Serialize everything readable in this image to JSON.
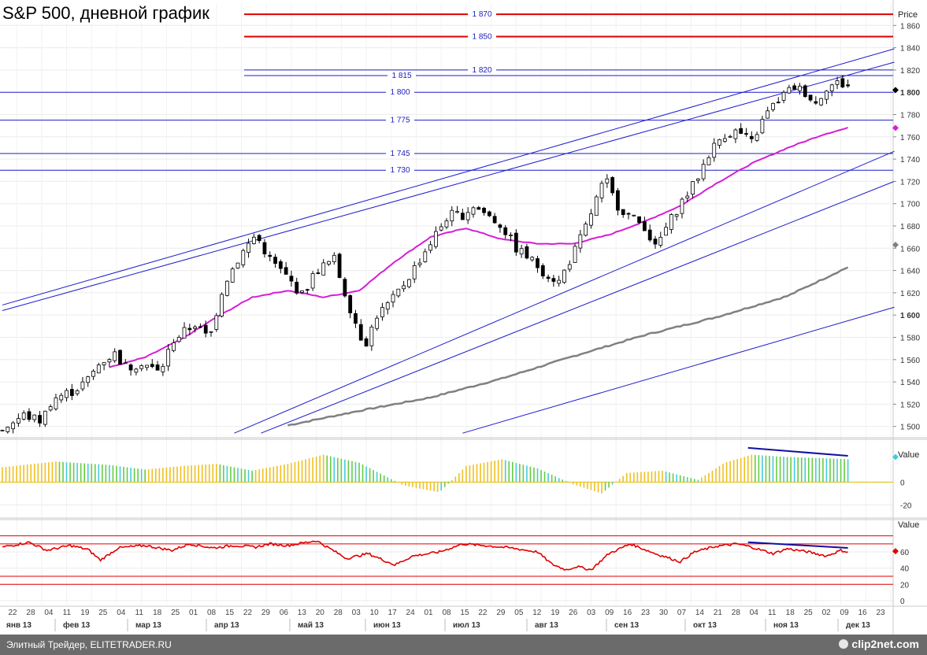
{
  "title": "S&P 500, дневной график",
  "footer": {
    "text": "Элитный Трейдер, ELITETRADER.RU",
    "logo": "clip2net.com"
  },
  "colors": {
    "bull": "#ffffff",
    "bear": "#000000",
    "ma_short": "#d61ed6",
    "ma_long": "#808080",
    "levels": "#1c1ccc",
    "levels_red": "#dd0000",
    "rsi": "#e00000",
    "hist_green": "#66cc44",
    "hist_cyan": "#44ccdd",
    "hist_yellow": "#f0c020"
  },
  "chart_data": [
    {
      "type": "candlestick",
      "title": "S&P 500, дневной график",
      "ylabel": "Price",
      "ylim": [
        1492,
        1880
      ],
      "y_ticks": [
        1500,
        1520,
        1540,
        1560,
        1580,
        1600,
        1620,
        1640,
        1660,
        1680,
        1700,
        1720,
        1740,
        1760,
        1780,
        1800,
        1820,
        1840,
        1860
      ],
      "y_tick_labels": [
        "1 500",
        "1 520",
        "1 540",
        "1 560",
        "1 580",
        "1 600",
        "1 620",
        "1 640",
        "1 660",
        "1 680",
        "1 700",
        "1 720",
        "1 740",
        "1 760",
        "1 780",
        "1 800",
        "1 820",
        "1 840",
        "1 860"
      ],
      "x_day_labels": [
        "22",
        "28",
        "04",
        "11",
        "19",
        "25",
        "04",
        "11",
        "18",
        "25",
        "01",
        "08",
        "15",
        "22",
        "29",
        "06",
        "13",
        "20",
        "28",
        "03",
        "10",
        "17",
        "24",
        "01",
        "08",
        "15",
        "22",
        "29",
        "05",
        "12",
        "19",
        "26",
        "03",
        "09",
        "16",
        "23",
        "30",
        "07",
        "14",
        "21",
        "28",
        "04",
        "11",
        "18",
        "25",
        "02",
        "09",
        "16",
        "23"
      ],
      "x_month_labels": [
        "янв 13",
        "фев 13",
        "мар 13",
        "апр 13",
        "май 13",
        "июн 13",
        "июл 13",
        "авг 13",
        "сен 13",
        "окт 13",
        "ноя 13",
        "дек 13"
      ],
      "horizontal_levels": [
        {
          "value": 1870,
          "label": "1 870",
          "color": "red"
        },
        {
          "value": 1850,
          "label": "1 850",
          "color": "red"
        },
        {
          "value": 1820,
          "label": "1 820",
          "color": "blue"
        },
        {
          "value": 1815,
          "label": "1 815",
          "color": "blue"
        },
        {
          "value": 1800,
          "label": "1 800",
          "color": "blue"
        },
        {
          "value": 1775,
          "label": "1 775",
          "color": "blue"
        },
        {
          "value": 1745,
          "label": "1 745",
          "color": "blue"
        },
        {
          "value": 1730,
          "label": "1 730",
          "color": "blue"
        }
      ],
      "price_path": [
        [
          0,
          1498
        ],
        [
          12,
          1510
        ],
        [
          22,
          1505
        ],
        [
          28,
          1525
        ],
        [
          40,
          1532
        ],
        [
          48,
          1542
        ],
        [
          55,
          1558
        ],
        [
          63,
          1565
        ],
        [
          70,
          1552
        ],
        [
          78,
          1558
        ],
        [
          88,
          1548
        ],
        [
          96,
          1578
        ],
        [
          108,
          1592
        ],
        [
          116,
          1578
        ],
        [
          124,
          1628
        ],
        [
          134,
          1655
        ],
        [
          142,
          1672
        ],
        [
          150,
          1650
        ],
        [
          160,
          1633
        ],
        [
          168,
          1618
        ],
        [
          176,
          1640
        ],
        [
          186,
          1650
        ],
        [
          193,
          1615
        ],
        [
          203,
          1572
        ],
        [
          210,
          1600
        ],
        [
          218,
          1612
        ],
        [
          226,
          1630
        ],
        [
          234,
          1650
        ],
        [
          242,
          1670
        ],
        [
          250,
          1690
        ],
        [
          258,
          1690
        ],
        [
          264,
          1698
        ],
        [
          272,
          1690
        ],
        [
          280,
          1680
        ],
        [
          288,
          1660
        ],
        [
          296,
          1650
        ],
        [
          304,
          1638
        ],
        [
          312,
          1630
        ],
        [
          320,
          1655
        ],
        [
          326,
          1675
        ],
        [
          334,
          1708
        ],
        [
          338,
          1722
        ],
        [
          344,
          1700
        ],
        [
          352,
          1688
        ],
        [
          360,
          1680
        ],
        [
          366,
          1660
        ],
        [
          372,
          1678
        ],
        [
          380,
          1700
        ],
        [
          388,
          1718
        ],
        [
          396,
          1745
        ],
        [
          404,
          1762
        ],
        [
          412,
          1765
        ],
        [
          420,
          1755
        ],
        [
          428,
          1780
        ],
        [
          436,
          1795
        ],
        [
          444,
          1805
        ],
        [
          450,
          1800
        ],
        [
          456,
          1790
        ],
        [
          462,
          1805
        ],
        [
          468,
          1808
        ],
        [
          474,
          1806
        ]
      ],
      "ma50": [
        [
          60,
          1553
        ],
        [
          80,
          1562
        ],
        [
          100,
          1578
        ],
        [
          120,
          1598
        ],
        [
          140,
          1616
        ],
        [
          160,
          1622
        ],
        [
          180,
          1616
        ],
        [
          200,
          1622
        ],
        [
          220,
          1648
        ],
        [
          240,
          1670
        ],
        [
          260,
          1678
        ],
        [
          280,
          1668
        ],
        [
          300,
          1664
        ],
        [
          320,
          1664
        ],
        [
          340,
          1672
        ],
        [
          360,
          1684
        ],
        [
          380,
          1698
        ],
        [
          400,
          1718
        ],
        [
          420,
          1736
        ],
        [
          440,
          1750
        ],
        [
          460,
          1762
        ],
        [
          474,
          1768
        ]
      ],
      "ma200": [
        [
          160,
          1501
        ],
        [
          200,
          1514
        ],
        [
          240,
          1526
        ],
        [
          280,
          1543
        ],
        [
          320,
          1563
        ],
        [
          360,
          1582
        ],
        [
          400,
          1598
        ],
        [
          440,
          1617
        ],
        [
          474,
          1643
        ]
      ],
      "trend_lines": [
        {
          "from": [
            0,
            1609
          ],
          "to": [
            500,
            1839
          ]
        },
        {
          "from": [
            0,
            1604
          ],
          "to": [
            500,
            1827
          ]
        },
        {
          "from": [
            130,
            1494
          ],
          "to": [
            500,
            1747
          ]
        },
        {
          "from": [
            145,
            1494
          ],
          "to": [
            500,
            1720
          ]
        },
        {
          "from": [
            258,
            1494
          ],
          "to": [
            500,
            1607
          ]
        }
      ],
      "markers": [
        {
          "value": 1802,
          "label": "1 800",
          "color": "#000000"
        },
        {
          "value": 1768,
          "color": "#d61ed6"
        },
        {
          "value": 1663,
          "color": "#808080"
        }
      ]
    },
    {
      "type": "bar",
      "name": "oscillator",
      "ylabel": "Value",
      "ylim": [
        -26,
        32
      ],
      "y_ticks": [
        0,
        -20
      ],
      "y_tick_labels": [
        "0",
        "-20"
      ],
      "hist_path": [
        [
          0,
          13
        ],
        [
          30,
          18
        ],
        [
          60,
          15
        ],
        [
          80,
          11
        ],
        [
          100,
          14
        ],
        [
          120,
          16
        ],
        [
          140,
          10
        ],
        [
          160,
          16
        ],
        [
          180,
          24
        ],
        [
          200,
          17
        ],
        [
          225,
          -3
        ],
        [
          245,
          -9
        ],
        [
          260,
          14
        ],
        [
          280,
          20
        ],
        [
          300,
          12
        ],
        [
          320,
          -2
        ],
        [
          336,
          -10
        ],
        [
          350,
          8
        ],
        [
          370,
          10
        ],
        [
          390,
          2
        ],
        [
          405,
          17
        ],
        [
          420,
          24
        ],
        [
          440,
          22
        ],
        [
          460,
          21
        ],
        [
          474,
          20
        ]
      ],
      "div_line": {
        "from": [
          418,
          30
        ],
        "to": [
          474,
          23
        ]
      }
    },
    {
      "type": "line",
      "name": "rsi",
      "ylabel": "Value",
      "ylim": [
        -5,
        100
      ],
      "y_ticks": [
        60,
        40,
        20,
        0
      ],
      "y_tick_labels": [
        "60",
        "40",
        "20",
        "0"
      ],
      "levels": [
        80,
        70,
        30,
        20
      ],
      "rsi_path": [
        [
          0,
          66
        ],
        [
          15,
          72
        ],
        [
          25,
          62
        ],
        [
          38,
          68
        ],
        [
          48,
          63
        ],
        [
          55,
          50
        ],
        [
          65,
          65
        ],
        [
          80,
          68
        ],
        [
          95,
          62
        ],
        [
          105,
          70
        ],
        [
          118,
          65
        ],
        [
          130,
          68
        ],
        [
          142,
          66
        ],
        [
          150,
          70
        ],
        [
          160,
          68
        ],
        [
          176,
          74
        ],
        [
          193,
          52
        ],
        [
          205,
          58
        ],
        [
          220,
          44
        ],
        [
          230,
          55
        ],
        [
          245,
          60
        ],
        [
          258,
          70
        ],
        [
          270,
          68
        ],
        [
          285,
          65
        ],
        [
          300,
          60
        ],
        [
          308,
          45
        ],
        [
          316,
          38
        ],
        [
          322,
          42
        ],
        [
          330,
          38
        ],
        [
          340,
          58
        ],
        [
          352,
          70
        ],
        [
          366,
          58
        ],
        [
          380,
          48
        ],
        [
          388,
          60
        ],
        [
          400,
          67
        ],
        [
          412,
          70
        ],
        [
          420,
          66
        ],
        [
          432,
          58
        ],
        [
          440,
          64
        ],
        [
          452,
          60
        ],
        [
          462,
          55
        ],
        [
          470,
          62
        ],
        [
          474,
          60
        ]
      ],
      "div_line": {
        "from": [
          418,
          72
        ],
        "to": [
          474,
          65
        ]
      },
      "marker": {
        "value": 61,
        "color": "#e00000"
      }
    }
  ]
}
